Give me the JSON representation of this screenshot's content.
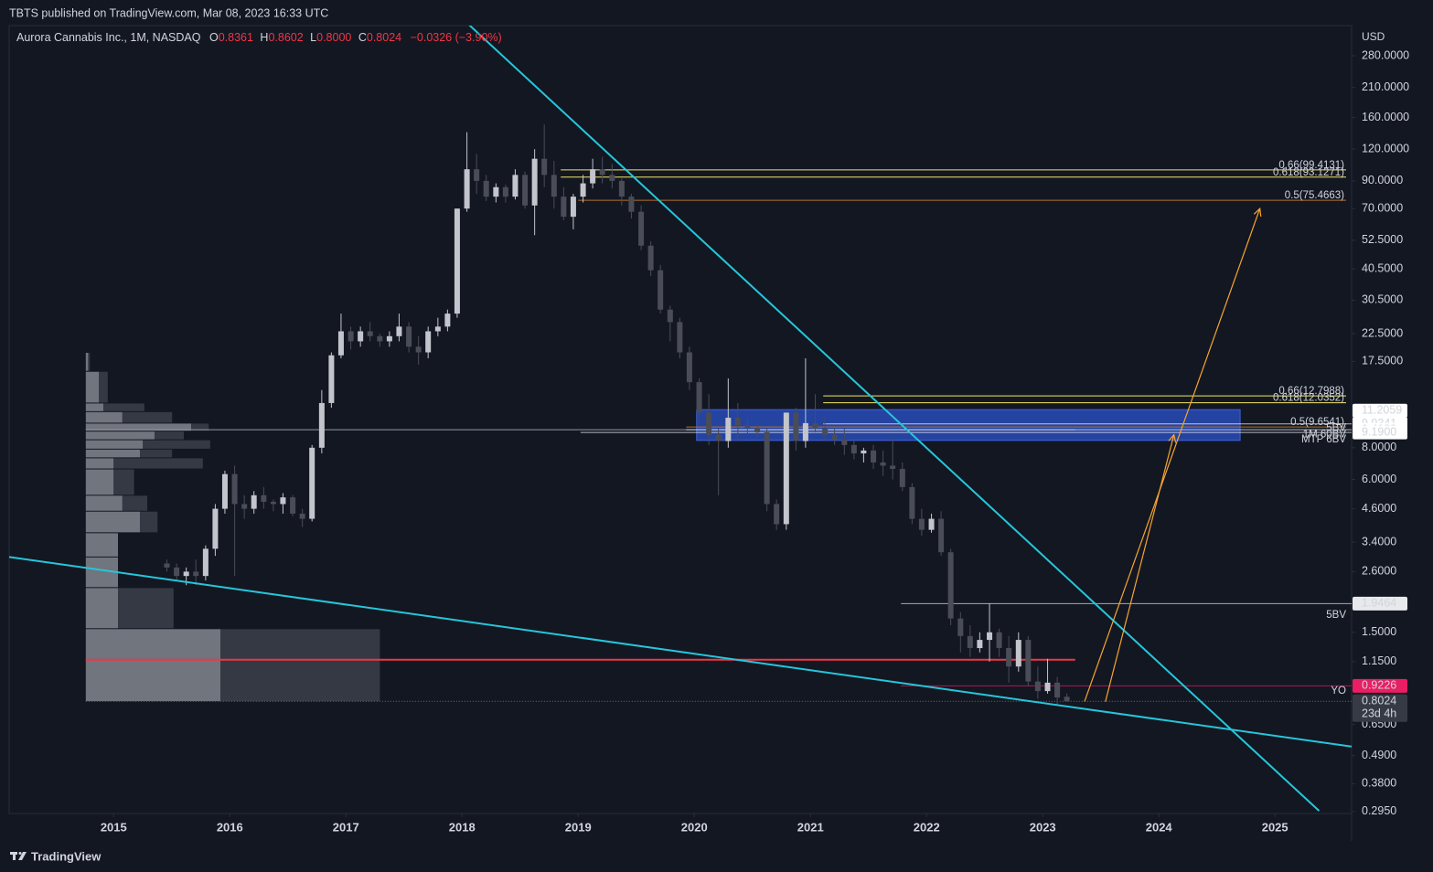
{
  "header": {
    "publisher": "TBTS published on TradingView.com, Mar 08, 2023 16:33 UTC",
    "footer": "TradingView"
  },
  "chart_data": {
    "type": "candlestick",
    "title": "Aurora Cannabis Inc., 1M, NASDAQ",
    "ohlc_legend": [
      "O",
      "0.8361",
      "H",
      "0.8602",
      "L",
      "0.8000",
      "C",
      "0.8024",
      "−0.0326 (−3.90%)"
    ],
    "y_unit": "USD",
    "up_color": "#c3c5cc",
    "down_color": "#4a4d57",
    "x": [
      2015.458,
      2015.542,
      2015.625,
      2015.708,
      2015.792,
      2015.875,
      2015.958,
      2016.042,
      2016.125,
      2016.208,
      2016.292,
      2016.375,
      2016.458,
      2016.542,
      2016.625,
      2016.708,
      2016.792,
      2016.875,
      2016.958,
      2017.042,
      2017.125,
      2017.208,
      2017.292,
      2017.375,
      2017.458,
      2017.542,
      2017.625,
      2017.708,
      2017.792,
      2017.875,
      2017.958,
      2018.042,
      2018.125,
      2018.208,
      2018.292,
      2018.375,
      2018.458,
      2018.542,
      2018.625,
      2018.708,
      2018.792,
      2018.875,
      2018.958,
      2019.042,
      2019.125,
      2019.208,
      2019.292,
      2019.375,
      2019.458,
      2019.542,
      2019.625,
      2019.708,
      2019.792,
      2019.875,
      2019.958,
      2020.042,
      2020.125,
      2020.208,
      2020.292,
      2020.375,
      2020.458,
      2020.542,
      2020.625,
      2020.708,
      2020.792,
      2020.875,
      2020.958,
      2021.042,
      2021.125,
      2021.208,
      2021.292,
      2021.375,
      2021.458,
      2021.542,
      2021.625,
      2021.708,
      2021.792,
      2021.875,
      2021.958,
      2022.042,
      2022.125,
      2022.208,
      2022.292,
      2022.375,
      2022.458,
      2022.542,
      2022.625,
      2022.708,
      2022.792,
      2022.875,
      2022.958,
      2023.042,
      2023.125,
      2023.208
    ],
    "open": [
      2.8,
      2.7,
      2.5,
      2.6,
      2.5,
      3.2,
      4.6,
      6.3,
      4.8,
      4.6,
      5.2,
      4.9,
      4.8,
      5.1,
      4.4,
      4.2,
      8.0,
      12.0,
      18.5,
      23,
      21,
      23,
      22,
      21,
      22,
      24,
      20,
      19,
      23,
      24,
      27,
      70,
      100,
      90,
      78,
      85,
      78,
      95,
      72,
      110,
      95,
      78,
      65,
      78,
      88,
      100,
      95,
      90,
      78,
      68,
      50,
      40,
      28,
      25,
      19,
      14.5,
      11,
      9,
      8.5,
      10.5,
      9.8,
      9.6,
      9.2,
      4.8,
      4.0,
      11,
      8.5,
      10,
      9.5,
      9,
      8.6,
      8.2,
      7.6,
      7.8,
      7,
      6.8,
      6.6,
      5.6,
      4.2,
      3.8,
      4.2,
      3.1,
      1.7,
      1.45,
      1.3,
      1.4,
      1.5,
      1.3,
      1.1,
      1.4,
      0.96,
      0.88,
      0.95,
      0.8361
    ],
    "high": [
      2.9,
      2.8,
      2.7,
      2.9,
      3.3,
      4.8,
      6.5,
      6.8,
      5.2,
      5.4,
      5.6,
      5.0,
      5.3,
      5.2,
      4.6,
      8.2,
      13.5,
      19.0,
      27,
      24,
      24,
      25,
      22.5,
      23,
      27,
      25,
      22,
      24,
      26,
      28,
      70,
      140,
      115,
      95,
      88,
      87,
      100,
      98,
      120,
      150,
      108,
      85,
      80,
      95,
      110,
      112,
      105,
      92,
      80,
      72,
      52,
      42,
      29,
      26,
      20,
      15,
      13,
      9.5,
      15,
      12,
      10.5,
      10,
      9.5,
      5,
      11,
      11.5,
      18,
      13,
      10.5,
      9.6,
      9.5,
      8.6,
      8,
      8.2,
      7.8,
      8.6,
      7,
      5.8,
      4.6,
      4.4,
      4.5,
      3.2,
      1.8,
      1.6,
      1.5,
      1.95,
      1.55,
      1.45,
      1.5,
      1.45,
      1.1,
      1.18,
      1.0,
      0.8602
    ],
    "low": [
      2.6,
      2.4,
      2.3,
      2.3,
      2.4,
      3.0,
      4.4,
      2.5,
      4.2,
      4.4,
      4.6,
      4.5,
      4.4,
      4.3,
      3.9,
      4.1,
      7.6,
      11.5,
      18,
      19.5,
      20,
      21,
      20,
      20,
      21,
      19,
      17,
      18,
      22,
      23,
      26,
      68,
      80,
      75,
      74,
      74,
      76,
      70,
      55,
      85,
      70,
      63,
      58,
      74,
      84,
      88,
      84,
      72,
      64,
      48,
      38,
      27,
      21,
      18,
      13.5,
      10,
      8.2,
      5.2,
      8,
      8.5,
      9,
      8.8,
      4.5,
      3.8,
      3.8,
      7.8,
      8,
      9.2,
      8.5,
      8.2,
      7.5,
      7.2,
      7,
      6.6,
      6.2,
      6,
      5.4,
      4,
      3.6,
      3.7,
      3.0,
      1.6,
      1.25,
      1.2,
      1.25,
      1.15,
      1.2,
      0.95,
      1.05,
      0.92,
      0.82,
      0.86,
      0.78,
      0.8
    ],
    "close": [
      2.7,
      2.5,
      2.6,
      2.5,
      3.2,
      4.6,
      6.3,
      4.8,
      4.6,
      5.2,
      4.9,
      4.8,
      5.1,
      4.4,
      4.2,
      8.0,
      12.0,
      18.5,
      23,
      21,
      23,
      22,
      21,
      22,
      24,
      20,
      19,
      23,
      24,
      27,
      70,
      100,
      90,
      78,
      85,
      78,
      95,
      72,
      110,
      95,
      78,
      65,
      78,
      88,
      100,
      95,
      90,
      78,
      68,
      50,
      40,
      28,
      25,
      19,
      14.5,
      11,
      9,
      8.5,
      10.5,
      9.8,
      9.6,
      9.2,
      4.8,
      4.0,
      11,
      8.5,
      10,
      9.5,
      9,
      8.6,
      8.2,
      7.6,
      7.8,
      7,
      6.8,
      6.6,
      5.6,
      4.2,
      3.8,
      4.2,
      3.1,
      1.7,
      1.45,
      1.3,
      1.4,
      1.5,
      1.3,
      1.1,
      1.4,
      0.96,
      0.88,
      0.95,
      0.83,
      0.8024
    ],
    "xlim": [
      2014.1,
      2025.66
    ],
    "xticks": [
      2015,
      2016,
      2017,
      2018,
      2019,
      2020,
      2021,
      2022,
      2023,
      2024,
      2025
    ],
    "log_y": true,
    "ylim": [
      0.29,
      368
    ],
    "yticks": [
      {
        "value": 280,
        "label": "280.0000"
      },
      {
        "value": 210,
        "label": "210.0000"
      },
      {
        "value": 160,
        "label": "160.0000"
      },
      {
        "value": 120,
        "label": "120.0000"
      },
      {
        "value": 90,
        "label": "90.0000"
      },
      {
        "value": 70,
        "label": "70.0000"
      },
      {
        "value": 52.5,
        "label": "52.5000"
      },
      {
        "value": 40.5,
        "label": "40.5000"
      },
      {
        "value": 30.5,
        "label": "30.5000"
      },
      {
        "value": 22.5,
        "label": "22.5000"
      },
      {
        "value": 17.5,
        "label": "17.5000"
      },
      {
        "value": 8,
        "label": "8.0000"
      },
      {
        "value": 6,
        "label": "6.0000"
      },
      {
        "value": 4.6,
        "label": "4.6000"
      },
      {
        "value": 3.4,
        "label": "3.4000"
      },
      {
        "value": 2.6,
        "label": "2.6000"
      },
      {
        "value": 1.5,
        "label": "1.5000"
      },
      {
        "value": 1.15,
        "label": "1.1500"
      },
      {
        "value": 0.65,
        "label": "0.6500"
      },
      {
        "value": 0.49,
        "label": "0.4900"
      },
      {
        "value": 0.38,
        "label": "0.3800"
      },
      {
        "value": 0.295,
        "label": "0.2950"
      }
    ],
    "zone": {
      "x": [
        2020.02,
        2024.7
      ],
      "y": [
        8.55,
        11.3
      ],
      "color": "#2a4fc0"
    },
    "volume_profile": {
      "up_color": "#8a8d96",
      "down_color": "#3c3f4a",
      "rows": [
        {
          "low": 0.8,
          "high": 1.55,
          "up": 460,
          "down": 545
        },
        {
          "low": 1.55,
          "high": 2.25,
          "up": 110,
          "down": 190
        },
        {
          "low": 2.25,
          "high": 2.97,
          "up": 110,
          "down": 0
        },
        {
          "low": 2.97,
          "high": 3.7,
          "up": 110,
          "down": 0
        },
        {
          "low": 3.7,
          "high": 4.5,
          "up": 185,
          "down": 60
        },
        {
          "low": 4.5,
          "high": 5.2,
          "up": 125,
          "down": 85
        },
        {
          "low": 5.2,
          "high": 6.6,
          "up": 95,
          "down": 70
        },
        {
          "low": 6.6,
          "high": 7.3,
          "up": 95,
          "down": 305
        },
        {
          "low": 7.3,
          "high": 7.9,
          "up": 185,
          "down": 110
        },
        {
          "low": 7.9,
          "high": 8.6,
          "up": 195,
          "down": 230
        },
        {
          "low": 8.6,
          "high": 9.3,
          "up": 235,
          "down": 100
        },
        {
          "low": 9.3,
          "high": 10.0,
          "up": 360,
          "down": 60
        },
        {
          "low": 10.0,
          "high": 11.1,
          "up": 125,
          "down": 170
        },
        {
          "low": 11.1,
          "high": 12.0,
          "up": 60,
          "down": 140
        },
        {
          "low": 12.0,
          "high": 16.0,
          "up": 45,
          "down": 30
        },
        {
          "low": 16.0,
          "high": 19.0,
          "up": 8,
          "down": 6
        }
      ]
    },
    "trendlines": [
      {
        "color": "#26c6da",
        "points": [
          [
            2018.04,
            378
          ],
          [
            2025.38,
            0.297
          ]
        ]
      },
      {
        "color": "#26c6da",
        "points": [
          [
            2014.1,
            2.97
          ],
          [
            2025.66,
            0.532
          ]
        ]
      }
    ],
    "arrows": [
      {
        "color": "#f7a531",
        "points": [
          [
            2023.36,
            0.8
          ],
          [
            2024.87,
            70
          ]
        ]
      },
      {
        "color": "#f7a531",
        "points": [
          [
            2023.54,
            0.8
          ],
          [
            2024.13,
            9.0
          ]
        ]
      }
    ],
    "hlines": [
      {
        "value": 1.17,
        "from": 2014.76,
        "to": 2023.28,
        "color": "#f23645"
      },
      {
        "value": 9.42,
        "from": 2014.76,
        "to": 2023.28,
        "color": "#9598a1"
      },
      {
        "value": 0.8024,
        "from": 2014.76,
        "to": 2025.66,
        "color": "#6b6e78"
      }
    ],
    "levels": [
      {
        "value": 99.4131,
        "label": "0.66(99.4131)",
        "from": 2018.85,
        "color": "#f5e663"
      },
      {
        "value": 93.1271,
        "label": "0.618(93.1271)",
        "from": 2018.85,
        "color": "#f5e663"
      },
      {
        "value": 75.4663,
        "label": "0.5(75.4663)",
        "from": 2019.0,
        "color": "#b8702a"
      },
      {
        "value": 12.7988,
        "label": "0.66(12.7988)",
        "from": 2021.11,
        "color": "#f5e663"
      },
      {
        "value": 12.0352,
        "label": "0.618(12.0352)",
        "from": 2021.11,
        "color": "#f5e663"
      },
      {
        "value": 9.6541,
        "label": "0.5(9.6541)",
        "from": 2019.93,
        "color": "#b8702a"
      }
    ],
    "text_labels": [
      {
        "value": 9.55,
        "label": "5BV",
        "color": "#d1d4dc"
      },
      {
        "value": 9.0,
        "label": "1M 60BV",
        "color": "#d1d4dc"
      },
      {
        "value": 8.6,
        "label": "MTP 6BV",
        "color": "#d1d4dc"
      },
      {
        "value": 1.75,
        "label": "5BV",
        "color": "#787b86"
      },
      {
        "value": 0.88,
        "label": "YO",
        "color": "#e91e63"
      }
    ],
    "price_labels": [
      {
        "value": 11.2059,
        "label": "11.2059",
        "color": "#ffffff",
        "text_color": "#131722"
      },
      {
        "value": 9.9341,
        "label": "9.9341",
        "color": "#ffffff",
        "text_color": "#131722",
        "from": 2021.11
      },
      {
        "value": 9.4199,
        "label": "9.4199",
        "color": "#ffffff",
        "text_color": "#131722",
        "from": 2019.93
      },
      {
        "value": 9.19,
        "label": "9.1900",
        "color": "#ffffff",
        "text_color": "#131722",
        "from": 2019.02
      },
      {
        "value": 1.9464,
        "label": "1.9464",
        "color": "#e8e9ec",
        "text_color": "#131722",
        "from": 2021.78
      },
      {
        "value": 0.9226,
        "label": "0.9226",
        "color": "#e91e63",
        "text_color": "#ffffff",
        "from": 2021.78
      },
      {
        "value": 0.8024,
        "label": "0.8024",
        "sub": "23d 4h",
        "color": "#363a45",
        "text_color": "#ffffff"
      }
    ]
  }
}
